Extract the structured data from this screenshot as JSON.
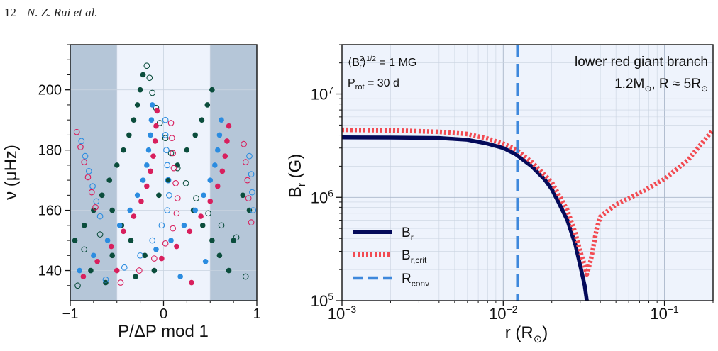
{
  "header": {
    "page_number": "12",
    "authors": "N. Z. Rui et al."
  },
  "colors": {
    "dark_green": "#0b4d3c",
    "magenta": "#d81f5d",
    "blue": "#2b8ce0",
    "navy": "#040a5a",
    "red_dotted": "#f24b52",
    "conv_dashed": "#3e88dc",
    "shade": "#b5c6d8",
    "panel_bg": "#eef3fc"
  },
  "chart_data": [
    {
      "type": "scatter",
      "xlabel": "P/ΔP mod 1",
      "ylabel": "ν (μHz)",
      "xlim": [
        -1,
        1
      ],
      "ylim": [
        130,
        215
      ],
      "xticks": [
        "−1",
        "0",
        "1"
      ],
      "yticks": [
        "140",
        "160",
        "180",
        "200"
      ],
      "shaded_regions": [
        [
          -1,
          -0.5
        ],
        [
          0.5,
          1
        ]
      ],
      "series": [
        {
          "color": "dark_green",
          "style": "filled",
          "points": [
            [
              -0.22,
              205
            ],
            [
              -0.25,
              200
            ],
            [
              -0.28,
              195
            ],
            [
              -0.32,
              190
            ],
            [
              -0.37,
              185
            ],
            [
              -0.43,
              180
            ],
            [
              -0.5,
              175
            ],
            [
              -0.58,
              170
            ],
            [
              -0.66,
              165
            ],
            [
              -0.75,
              160
            ],
            [
              -0.85,
              155
            ],
            [
              -0.95,
              150
            ],
            [
              -0.55,
              160
            ],
            [
              -0.45,
              155
            ],
            [
              -0.35,
              150
            ],
            [
              -0.2,
              145
            ],
            [
              -0.1,
              140
            ],
            [
              -0.55,
              145
            ],
            [
              -0.78,
              140
            ],
            [
              -0.62,
              136
            ],
            [
              0.52,
              200
            ],
            [
              0.47,
              195
            ],
            [
              0.41,
              190
            ],
            [
              0.34,
              185
            ],
            [
              0.25,
              180
            ],
            [
              0.15,
              175
            ],
            [
              0.05,
              170
            ],
            [
              -0.05,
              165
            ],
            [
              0.32,
              160
            ],
            [
              0.42,
              155
            ],
            [
              0.52,
              150
            ],
            [
              0.6,
              145
            ],
            [
              0.7,
              140
            ],
            [
              0.85,
              165
            ],
            [
              0.92,
              160
            ],
            [
              0.75,
              150
            ],
            [
              -0.3,
              138
            ]
          ]
        },
        {
          "color": "dark_green",
          "style": "open",
          "points": [
            [
              -0.18,
              208
            ],
            [
              -0.15,
              204
            ],
            [
              -0.12,
              199
            ],
            [
              -0.08,
              194
            ],
            [
              -0.04,
              189
            ],
            [
              0.02,
              184
            ],
            [
              0.08,
              179
            ],
            [
              0.15,
              174
            ],
            [
              0.24,
              169
            ],
            [
              0.35,
              164
            ],
            [
              0.48,
              159
            ],
            [
              0.62,
              155
            ],
            [
              0.78,
              151
            ],
            [
              -0.68,
              152
            ],
            [
              -0.85,
              147
            ],
            [
              -0.92,
              135
            ],
            [
              0.88,
              138
            ]
          ]
        },
        {
          "color": "blue",
          "style": "filled",
          "points": [
            [
              -0.12,
              195
            ],
            [
              -0.13,
              190
            ],
            [
              -0.14,
              185
            ],
            [
              -0.16,
              180
            ],
            [
              -0.18,
              175
            ],
            [
              -0.22,
              170
            ],
            [
              -0.28,
              165
            ],
            [
              -0.36,
              160
            ],
            [
              -0.47,
              155
            ],
            [
              -0.6,
              150
            ],
            [
              -0.75,
              145
            ],
            [
              -0.9,
              140
            ],
            [
              0.62,
              190
            ],
            [
              0.6,
              185
            ],
            [
              0.58,
              180
            ],
            [
              0.55,
              175
            ],
            [
              0.5,
              170
            ],
            [
              0.43,
              165
            ],
            [
              0.34,
              160
            ],
            [
              0.22,
              155
            ],
            [
              0.08,
              150
            ],
            [
              -0.08,
              147
            ],
            [
              0.18,
              138
            ],
            [
              0.45,
              143
            ]
          ]
        },
        {
          "color": "magenta",
          "style": "filled",
          "points": [
            [
              -0.07,
              193
            ],
            [
              -0.08,
              188
            ],
            [
              -0.09,
              183
            ],
            [
              -0.11,
              178
            ],
            [
              -0.14,
              173
            ],
            [
              -0.18,
              168
            ],
            [
              -0.24,
              163
            ],
            [
              -0.32,
              158
            ],
            [
              -0.43,
              153
            ],
            [
              -0.56,
              148
            ],
            [
              -0.71,
              143
            ],
            [
              -0.86,
              138
            ],
            [
              0.7,
              188
            ],
            [
              0.68,
              183
            ],
            [
              0.66,
              178
            ],
            [
              0.63,
              173
            ],
            [
              0.58,
              168
            ],
            [
              0.5,
              163
            ],
            [
              0.4,
              158
            ],
            [
              0.28,
              153
            ],
            [
              0.14,
              148
            ],
            [
              -0.02,
              144
            ],
            [
              0.3,
              136
            ],
            [
              -0.5,
              140
            ]
          ]
        },
        {
          "color": "blue",
          "style": "open",
          "points": [
            [
              0.02,
              190
            ],
            [
              0.02,
              185
            ],
            [
              0.03,
              180
            ],
            [
              0.04,
              175
            ],
            [
              0.05,
              170
            ],
            [
              0.06,
              165
            ],
            [
              0.04,
              160
            ],
            [
              -0.02,
              155
            ],
            [
              -0.12,
              150
            ],
            [
              -0.25,
              145
            ],
            [
              -0.42,
              141
            ],
            [
              -0.62,
              137
            ],
            [
              -0.88,
              183
            ],
            [
              -0.84,
              178
            ],
            [
              -0.8,
              173
            ],
            [
              -0.76,
              168
            ],
            [
              -0.72,
              163
            ],
            [
              -0.68,
              158
            ],
            [
              0.92,
              178
            ],
            [
              0.94,
              172
            ],
            [
              0.95,
              166
            ],
            [
              0.96,
              160
            ]
          ]
        },
        {
          "color": "magenta",
          "style": "open",
          "points": [
            [
              0.08,
              189
            ],
            [
              0.09,
              184
            ],
            [
              0.1,
              179
            ],
            [
              0.11,
              174
            ],
            [
              0.13,
              169
            ],
            [
              0.15,
              164
            ],
            [
              0.14,
              159
            ],
            [
              0.1,
              154
            ],
            [
              0.02,
              149
            ],
            [
              -0.1,
              144
            ],
            [
              -0.26,
              140
            ],
            [
              -0.46,
              136
            ],
            [
              -0.93,
              186
            ],
            [
              -0.89,
              181
            ],
            [
              -0.85,
              176
            ],
            [
              -0.81,
              171
            ],
            [
              -0.77,
              166
            ],
            [
              -0.73,
              161
            ],
            [
              0.86,
              182
            ],
            [
              0.88,
              176
            ],
            [
              0.9,
              170
            ],
            [
              0.91,
              164
            ],
            [
              0.94,
              156
            ]
          ]
        }
      ]
    },
    {
      "type": "line",
      "xlabel": "r (R⊙)",
      "ylabel": "Br (G)",
      "x_scale": "log",
      "y_scale": "log",
      "xlim": [
        0.001,
        0.2
      ],
      "ylim": [
        100000,
        30000000
      ],
      "xticks": [
        "10−3",
        "10−2",
        "10−1"
      ],
      "yticks": [
        "105",
        "106",
        "107"
      ],
      "annotation_left": [
        "⟨B2r⟩1/2 = 1 MG",
        "Prot = 30 d"
      ],
      "annotation_right": [
        "lower red giant branch",
        "1.2M⊙, R ≈ 5R⊙"
      ],
      "legend": [
        "Br",
        "Br,crit",
        "Rconv"
      ],
      "legend_position": "lower-left",
      "series": [
        {
          "name": "Br",
          "color": "navy",
          "style": "solid",
          "points": [
            [
              0.001,
              3800000
            ],
            [
              0.002,
              3790000
            ],
            [
              0.004,
              3750000
            ],
            [
              0.006,
              3600000
            ],
            [
              0.008,
              3300000
            ],
            [
              0.01,
              3000000
            ],
            [
              0.012,
              2600000
            ],
            [
              0.015,
              2000000
            ],
            [
              0.018,
              1500000
            ],
            [
              0.02,
              1200000
            ],
            [
              0.022,
              900000
            ],
            [
              0.025,
              600000
            ],
            [
              0.028,
              350000
            ],
            [
              0.03,
              220000
            ],
            [
              0.032,
              140000
            ],
            [
              0.033,
              100000
            ]
          ]
        },
        {
          "name": "Br,crit",
          "color": "red_dotted",
          "style": "dotted",
          "points": [
            [
              0.001,
              4500000
            ],
            [
              0.002,
              4450000
            ],
            [
              0.004,
              4300000
            ],
            [
              0.006,
              4100000
            ],
            [
              0.008,
              3700000
            ],
            [
              0.01,
              3300000
            ],
            [
              0.012,
              2900000
            ],
            [
              0.015,
              2200000
            ],
            [
              0.02,
              1400000
            ],
            [
              0.025,
              750000
            ],
            [
              0.028,
              450000
            ],
            [
              0.03,
              300000
            ],
            [
              0.032,
              220000
            ],
            [
              0.033,
              180000
            ],
            [
              0.035,
              250000
            ],
            [
              0.038,
              500000
            ],
            [
              0.04,
              650000
            ],
            [
              0.05,
              850000
            ],
            [
              0.07,
              1100000
            ],
            [
              0.1,
              1500000
            ],
            [
              0.14,
              2300000
            ],
            [
              0.2,
              4500000
            ]
          ]
        },
        {
          "name": "Rconv",
          "color": "conv_dashed",
          "style": "dashed",
          "vertical_x": 0.0123
        }
      ]
    }
  ]
}
